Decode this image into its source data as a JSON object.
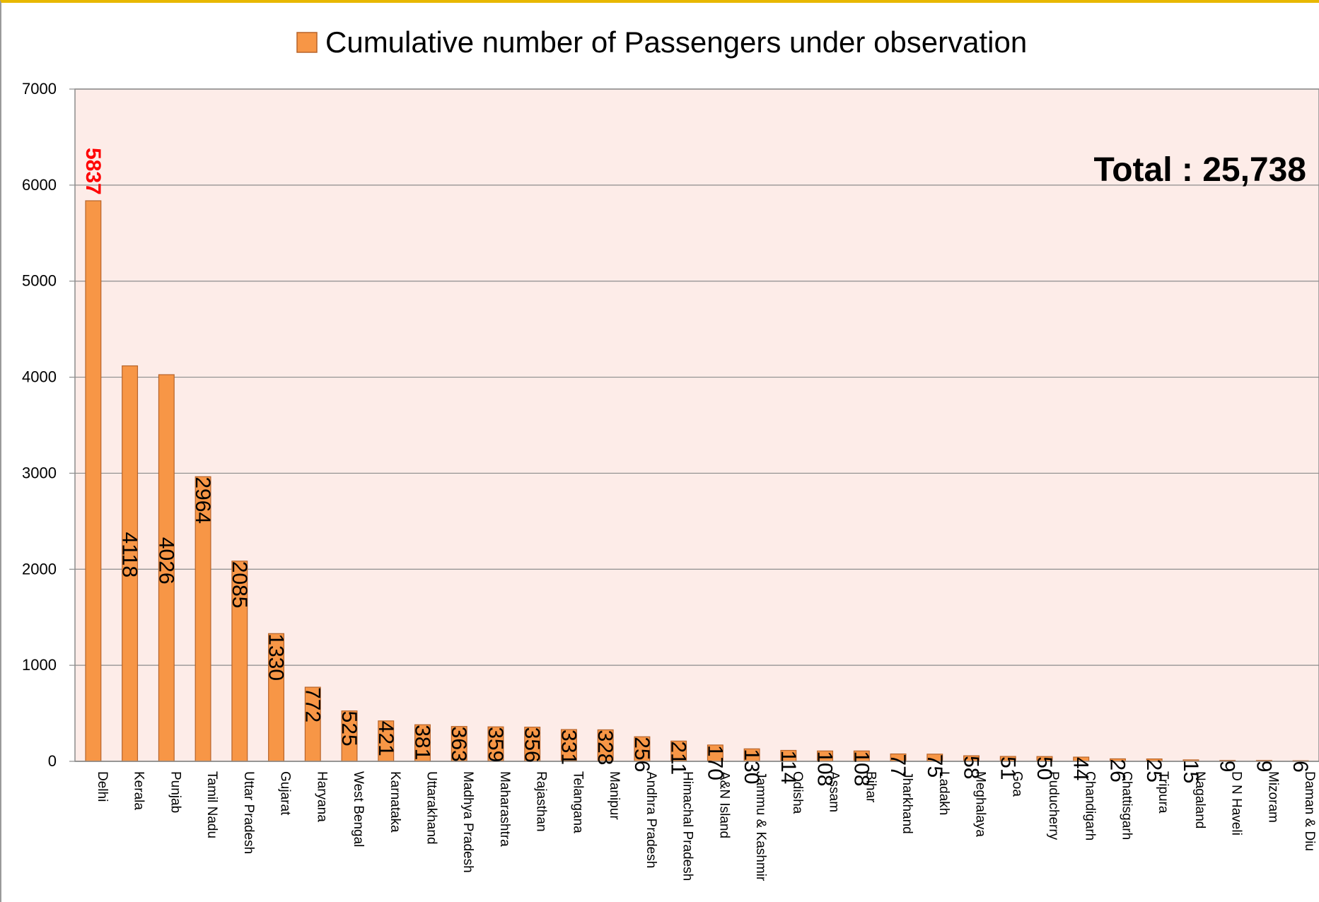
{
  "chart_data": {
    "type": "bar",
    "legend": "Cumulative number of Passengers under observation",
    "legend_position": "top",
    "annotation": "Total : 25,738",
    "ylim": [
      0,
      7000
    ],
    "yticks": [
      "0",
      "1000",
      "2000",
      "3000",
      "4000",
      "5000",
      "6000",
      "7000"
    ],
    "grid": true,
    "categories": [
      "Delhi",
      "Kerala",
      "Punjab",
      "Tamil Nadu",
      "Uttar Pradesh",
      "Gujarat",
      "Haryana",
      "West Bengal",
      "Karnataka",
      "Uttarakhand",
      "Madhya Pradesh",
      "Maharashtra",
      "Rajasthan",
      "Telangana",
      "Manipur",
      "Andhra Pradesh",
      "Himachal Pradesh",
      "A&N Island",
      "Jammu & Kashmir",
      "Odisha",
      "Assam",
      "Bihar",
      "Jharkhand",
      "Ladakh",
      "Meghalaya",
      "Goa",
      "Puducherry",
      "Chandigarh",
      "Chattisgarh",
      "Tripura",
      "Nagaland",
      "D N Haveli",
      "Mizoram",
      "Daman & Diu"
    ],
    "values": [
      5837,
      4118,
      4026,
      2964,
      2085,
      1330,
      772,
      525,
      421,
      381,
      363,
      359,
      356,
      331,
      328,
      256,
      211,
      170,
      130,
      114,
      108,
      108,
      77,
      75,
      58,
      51,
      50,
      44,
      26,
      25,
      15,
      9,
      9,
      6
    ],
    "data_labels": [
      "5837",
      "4118",
      "4026",
      "2964",
      "2085",
      "1330",
      "772",
      "525",
      "421",
      "381",
      "363",
      "359",
      "356",
      "331",
      "328",
      "256",
      "211",
      "170",
      "130",
      "114",
      "108",
      "108",
      "77",
      "75",
      "58",
      "51",
      "50",
      "44",
      "26",
      "25",
      "15",
      "9",
      "9",
      "6"
    ],
    "colors": {
      "bar_fill": "#f79646",
      "bar_stroke": "#b7642a",
      "plot_bg": "#fdece8",
      "grid": "#8c8c8c",
      "highlight_label": "#ff0000"
    }
  }
}
